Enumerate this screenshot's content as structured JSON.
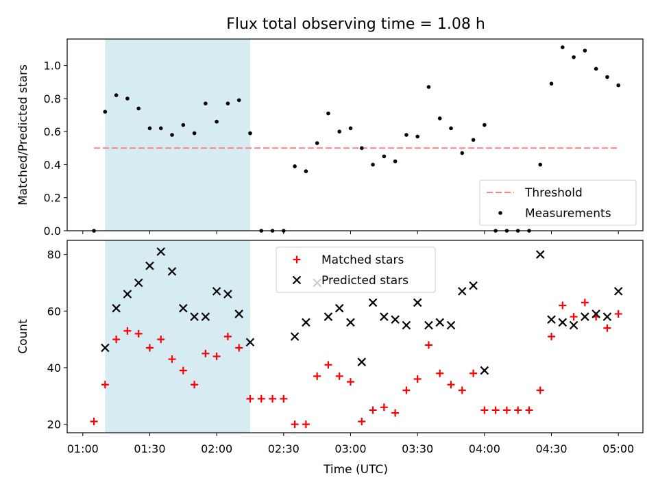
{
  "chart_data": {
    "title": "Flux total observing time = 1.08 h",
    "xlabel": "Time (UTC)",
    "x_ticks": [
      "01:00",
      "01:30",
      "02:00",
      "02:30",
      "03:00",
      "03:30",
      "04:00",
      "04:30",
      "05:00"
    ],
    "x_range": [
      "00:53",
      "05:11"
    ],
    "shaded_interval": [
      "01:10",
      "02:15"
    ],
    "shade_color": "#add8e6",
    "panels": [
      {
        "type": "scatter",
        "ylabel": "Matched/Predicted stars",
        "ylim": [
          0,
          1.16
        ],
        "y_ticks": [
          0.0,
          0.2,
          0.4,
          0.6,
          0.8,
          1.0
        ],
        "y_tick_labels": [
          "0.0",
          "0.2",
          "0.4",
          "0.6",
          "0.8",
          "1.0"
        ],
        "legend_position": "lower right",
        "threshold": {
          "name": "Threshold",
          "value": 0.5,
          "x_from": "01:05",
          "x_to": "05:00",
          "color": "#ff7f7f"
        },
        "series": [
          {
            "name": "Measurements",
            "marker": "dot",
            "color": "#000000",
            "x": [
              "01:05",
              "01:10",
              "01:15",
              "01:20",
              "01:25",
              "01:30",
              "01:35",
              "01:40",
              "01:45",
              "01:50",
              "01:55",
              "02:00",
              "02:05",
              "02:10",
              "02:15",
              "02:20",
              "02:25",
              "02:30",
              "02:35",
              "02:40",
              "02:45",
              "02:50",
              "02:55",
              "03:00",
              "03:05",
              "03:10",
              "03:15",
              "03:20",
              "03:25",
              "03:30",
              "03:35",
              "03:40",
              "03:45",
              "03:50",
              "03:55",
              "04:00",
              "04:05",
              "04:10",
              "04:15",
              "04:20",
              "04:25",
              "04:30",
              "04:35",
              "04:40",
              "04:45",
              "04:50",
              "04:55",
              "05:00"
            ],
            "values": [
              0.0,
              0.72,
              0.82,
              0.8,
              0.74,
              0.62,
              0.62,
              0.58,
              0.64,
              0.59,
              0.77,
              0.66,
              0.77,
              0.79,
              0.59,
              0.0,
              0.0,
              0.0,
              0.39,
              0.36,
              0.53,
              0.71,
              0.6,
              0.62,
              0.5,
              0.4,
              0.45,
              0.42,
              0.58,
              0.57,
              0.87,
              0.68,
              0.62,
              0.47,
              0.55,
              0.64,
              0.0,
              0.0,
              0.0,
              0.0,
              0.4,
              0.89,
              1.11,
              1.05,
              1.09,
              0.98,
              0.93,
              0.88
            ]
          }
        ]
      },
      {
        "type": "scatter",
        "ylabel": "Count",
        "ylim": [
          17,
          85
        ],
        "y_ticks": [
          20,
          40,
          60,
          80
        ],
        "y_tick_labels": [
          "20",
          "40",
          "60",
          "80"
        ],
        "legend_position": "upper center",
        "series": [
          {
            "name": "Matched stars",
            "marker": "plus",
            "color": "#ff0000",
            "x": [
              "01:05",
              "01:10",
              "01:15",
              "01:20",
              "01:25",
              "01:30",
              "01:35",
              "01:40",
              "01:45",
              "01:50",
              "01:55",
              "02:00",
              "02:05",
              "02:10",
              "02:15",
              "02:20",
              "02:25",
              "02:30",
              "02:35",
              "02:40",
              "02:45",
              "02:50",
              "02:55",
              "03:00",
              "03:05",
              "03:10",
              "03:15",
              "03:20",
              "03:25",
              "03:30",
              "03:35",
              "03:40",
              "03:45",
              "03:50",
              "03:55",
              "04:00",
              "04:05",
              "04:10",
              "04:15",
              "04:20",
              "04:25",
              "04:30",
              "04:35",
              "04:40",
              "04:45",
              "04:50",
              "04:55",
              "05:00"
            ],
            "values": [
              21,
              34,
              50,
              53,
              52,
              47,
              50,
              43,
              39,
              34,
              45,
              44,
              51,
              47,
              29,
              29,
              29,
              29,
              20,
              20,
              37,
              41,
              37,
              35,
              21,
              25,
              26,
              24,
              32,
              36,
              48,
              38,
              34,
              32,
              38,
              25,
              25,
              25,
              25,
              25,
              32,
              51,
              62,
              58,
              63,
              58,
              54,
              59
            ]
          },
          {
            "name": "Predicted stars",
            "marker": "x",
            "color": "#000000",
            "x": [
              "01:10",
              "01:15",
              "01:20",
              "01:25",
              "01:30",
              "01:35",
              "01:40",
              "01:45",
              "01:50",
              "01:55",
              "02:00",
              "02:05",
              "02:10",
              "02:15",
              "02:35",
              "02:40",
              "02:45",
              "02:50",
              "02:55",
              "03:00",
              "03:05",
              "03:10",
              "03:15",
              "03:20",
              "03:25",
              "03:30",
              "03:35",
              "03:40",
              "03:45",
              "03:50",
              "03:55",
              "04:00",
              "04:25",
              "04:30",
              "04:35",
              "04:40",
              "04:45",
              "04:50",
              "04:55",
              "05:00"
            ],
            "values": [
              47,
              61,
              66,
              70,
              76,
              81,
              74,
              61,
              58,
              58,
              67,
              66,
              59,
              49,
              51,
              56,
              70,
              58,
              61,
              56,
              42,
              63,
              58,
              57,
              55,
              63,
              55,
              56,
              55,
              67,
              69,
              39,
              80,
              57,
              56,
              55,
              58,
              59,
              58,
              67
            ]
          }
        ]
      }
    ]
  }
}
